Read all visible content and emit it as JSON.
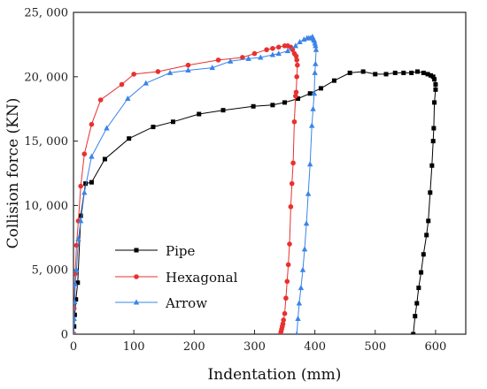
{
  "chart_data": {
    "type": "line",
    "title": "",
    "xlabel": "Indentation (mm)",
    "ylabel": "Collision force (KN)",
    "xlim": [
      0,
      650
    ],
    "ylim": [
      0,
      25000
    ],
    "xticks": [
      0,
      100,
      200,
      300,
      400,
      500,
      600
    ],
    "yticks": [
      0,
      5000,
      10000,
      15000,
      20000,
      25000
    ],
    "xtick_labels": [
      "0",
      "100",
      "200",
      "300",
      "400",
      "500",
      "600"
    ],
    "ytick_labels": [
      "0",
      "5, 000",
      "10, 000",
      "15, 000",
      "20, 000",
      "25, 000"
    ],
    "grid": false,
    "legend_position": "bottom-left",
    "series": [
      {
        "name": "Pipe",
        "color": "#000000",
        "marker": "square",
        "x": [
          0,
          1,
          2,
          4,
          7,
          12,
          20,
          30,
          52,
          92,
          132,
          165,
          208,
          248,
          298,
          330,
          350,
          372,
          392,
          410,
          432,
          458,
          480,
          500,
          518,
          533,
          547,
          560,
          570,
          580,
          587,
          592,
          596,
          598,
          600,
          600,
          598,
          597,
          596,
          594,
          591,
          588,
          585,
          580,
          576,
          572,
          569,
          566,
          563
        ],
        "y": [
          0,
          600,
          1500,
          2700,
          4000,
          9200,
          11700,
          11800,
          13600,
          15200,
          16100,
          16500,
          17100,
          17400,
          17700,
          17800,
          18000,
          18300,
          18700,
          19100,
          19700,
          20300,
          20400,
          20200,
          20200,
          20300,
          20300,
          20300,
          20400,
          20300,
          20200,
          20100,
          20000,
          19800,
          19400,
          19000,
          18000,
          16000,
          15000,
          13100,
          11000,
          8800,
          7700,
          6200,
          4800,
          3600,
          2400,
          1400,
          0
        ]
      },
      {
        "name": "Hexagonal",
        "color": "#e8312f",
        "marker": "circle",
        "x": [
          0,
          1,
          3,
          5,
          8,
          12,
          18,
          30,
          45,
          80,
          100,
          140,
          190,
          240,
          280,
          300,
          320,
          330,
          340,
          350,
          355,
          360,
          363,
          366,
          369,
          370,
          371,
          370,
          369,
          368,
          366,
          364,
          362,
          360,
          358,
          356,
          354,
          352,
          350,
          348,
          347,
          346,
          345,
          344,
          343
        ],
        "y": [
          0,
          2000,
          4700,
          6900,
          8800,
          11500,
          14000,
          16300,
          18200,
          19400,
          20200,
          20400,
          20900,
          21300,
          21500,
          21800,
          22100,
          22200,
          22300,
          22400,
          22400,
          22300,
          22100,
          21800,
          21600,
          21300,
          20900,
          20000,
          18800,
          18500,
          16500,
          13300,
          11700,
          9900,
          7000,
          5400,
          4100,
          2800,
          1600,
          1100,
          800,
          600,
          400,
          200,
          0
        ]
      },
      {
        "name": "Arrow",
        "color": "#3a84e8",
        "marker": "triangle",
        "x": [
          0,
          1,
          2,
          3,
          5,
          8,
          12,
          18,
          30,
          55,
          90,
          120,
          160,
          190,
          230,
          260,
          290,
          310,
          330,
          340,
          355,
          368,
          375,
          382,
          387,
          390,
          393,
          396,
          398,
          399,
          400,
          401,
          402,
          401,
          400,
          399,
          397,
          395,
          392,
          389,
          386,
          383,
          380,
          377,
          374,
          372,
          370
        ],
        "y": [
          0,
          1200,
          2500,
          3900,
          5000,
          7400,
          8800,
          11000,
          13800,
          16000,
          18300,
          19500,
          20300,
          20500,
          20700,
          21200,
          21400,
          21500,
          21700,
          21800,
          22000,
          22400,
          22700,
          22900,
          23000,
          23000,
          23000,
          23100,
          22900,
          22800,
          22600,
          22400,
          22100,
          21000,
          20300,
          18700,
          17500,
          16200,
          13200,
          10900,
          8600,
          6600,
          5000,
          3600,
          2400,
          1200,
          0
        ]
      }
    ]
  }
}
